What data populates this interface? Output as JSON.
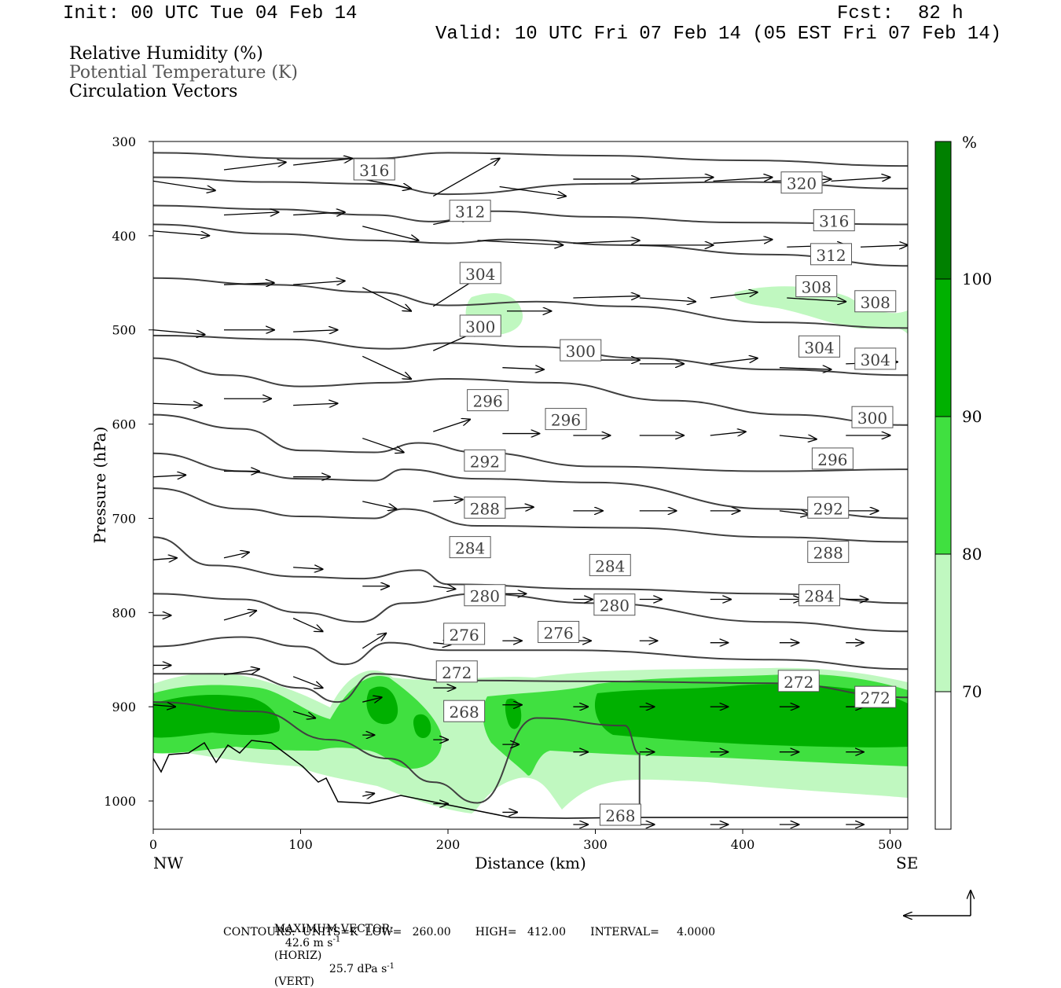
{
  "header": {
    "init": "Init: 00 UTC Tue 04 Feb 14",
    "fcst_label": "Fcst:",
    "fcst_value": "82 h",
    "valid": "Valid: 10 UTC Fri 07 Feb 14 (05 EST Fri 07 Feb 14)"
  },
  "fields": {
    "rh": "Relative Humidity (%)",
    "theta": "Potential Temperature (K)",
    "vectors": "Circulation Vectors"
  },
  "footer": {
    "max_label": "MAXIMUM VECTOR:",
    "horiz_value": "42.6 m s",
    "horiz_suffix": "(HORIZ)",
    "vert_value": "25.7 dPa s",
    "vert_suffix": "(VERT)",
    "exp": "-1",
    "contours": "CONTOURS:  UNITS=K  LOW=   260.00       HIGH=   412.00       INTERVAL=     4.0000"
  },
  "colors": {
    "rh70": "#c0f8c0",
    "rh80": "#40e040",
    "rh90": "#00b000",
    "rh100": "#008000",
    "theta_line": "#404040"
  },
  "chart_data": {
    "type": "contour",
    "xlabel": "Distance (km)",
    "ylabel": "Pressure (hPa)",
    "xlim": [
      0,
      512
    ],
    "ylim": [
      1030,
      300
    ],
    "x_ticks": [
      "0",
      "100",
      "200",
      "300",
      "400",
      "500"
    ],
    "y_ticks": [
      "300",
      "400",
      "500",
      "600",
      "700",
      "800",
      "900",
      "1000"
    ],
    "x_start_label": "NW",
    "x_end_label": "SE",
    "colorbar": {
      "unit": "%",
      "levels": [
        "70",
        "80",
        "90",
        "100"
      ]
    },
    "theta_labels": [
      {
        "text": "316",
        "x": 150,
        "p": 330
      },
      {
        "text": "320",
        "x": 440,
        "p": 344
      },
      {
        "text": "312",
        "x": 215,
        "p": 374
      },
      {
        "text": "316",
        "x": 462,
        "p": 384
      },
      {
        "text": "312",
        "x": 460,
        "p": 420
      },
      {
        "text": "304",
        "x": 222,
        "p": 440
      },
      {
        "text": "308",
        "x": 450,
        "p": 454
      },
      {
        "text": "308",
        "x": 490,
        "p": 470
      },
      {
        "text": "300",
        "x": 222,
        "p": 496
      },
      {
        "text": "300",
        "x": 290,
        "p": 522
      },
      {
        "text": "304",
        "x": 452,
        "p": 518
      },
      {
        "text": "304",
        "x": 490,
        "p": 531
      },
      {
        "text": "296",
        "x": 227,
        "p": 575
      },
      {
        "text": "296",
        "x": 280,
        "p": 595
      },
      {
        "text": "300",
        "x": 488,
        "p": 593
      },
      {
        "text": "292",
        "x": 225,
        "p": 639
      },
      {
        "text": "296",
        "x": 461,
        "p": 637
      },
      {
        "text": "288",
        "x": 225,
        "p": 689
      },
      {
        "text": "292",
        "x": 458,
        "p": 689
      },
      {
        "text": "284",
        "x": 215,
        "p": 731
      },
      {
        "text": "288",
        "x": 458,
        "p": 736
      },
      {
        "text": "284",
        "x": 310,
        "p": 750
      },
      {
        "text": "280",
        "x": 225,
        "p": 782
      },
      {
        "text": "280",
        "x": 313,
        "p": 792
      },
      {
        "text": "284",
        "x": 452,
        "p": 782
      },
      {
        "text": "276",
        "x": 211,
        "p": 823
      },
      {
        "text": "276",
        "x": 275,
        "p": 821
      },
      {
        "text": "272",
        "x": 206,
        "p": 863
      },
      {
        "text": "272",
        "x": 438,
        "p": 873
      },
      {
        "text": "272",
        "x": 490,
        "p": 890
      },
      {
        "text": "268",
        "x": 211,
        "p": 905
      },
      {
        "text": "268",
        "x": 317,
        "p": 1015
      }
    ],
    "theta_levels": [
      268,
      272,
      276,
      280,
      284,
      288,
      292,
      296,
      300,
      304,
      308,
      312,
      316,
      320
    ]
  }
}
